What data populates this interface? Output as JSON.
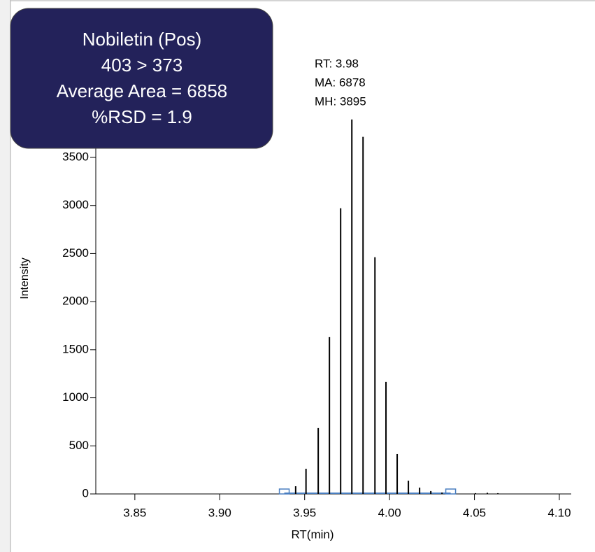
{
  "chart_data": {
    "type": "stem",
    "box_lines": [
      "Nobiletin (Pos)",
      "403 > 373",
      "Average Area = 6858",
      "%RSD = 1.9"
    ],
    "annotation_lines": [
      "RT: 3.98",
      "MA: 6878",
      "MH: 3895"
    ],
    "x_label": "RT(min)",
    "y_label": "Intensity",
    "x": [
      3.9447,
      3.9508,
      3.958,
      3.9646,
      3.9712,
      3.9778,
      3.9844,
      3.9914,
      3.9979,
      4.0045,
      4.0111,
      4.0177,
      4.0243,
      4.0309,
      4.0506,
      4.0576,
      4.0638
    ],
    "values": [
      80,
      262,
      685,
      1631,
      2972,
      3895,
      3714,
      2462,
      1165,
      415,
      138,
      66,
      30,
      15,
      8,
      12,
      8
    ],
    "color": "#000000",
    "peak_bounds": [
      3.938,
      4.036
    ],
    "peak_bounds_color": "#4a7fc1",
    "xlim": [
      3.827,
      4.107
    ],
    "ylim": [
      0,
      5050
    ],
    "xticks": [
      3.85,
      {
        "value": 3.9,
        "label": "3.90"
      },
      3.95,
      {
        "value": 4,
        "label": "4.00"
      },
      4.05,
      {
        "value": 4.1,
        "label": "4.10"
      }
    ],
    "yticks": [
      0,
      500,
      1000,
      1500,
      2000,
      2500,
      3000,
      3500
    ]
  }
}
